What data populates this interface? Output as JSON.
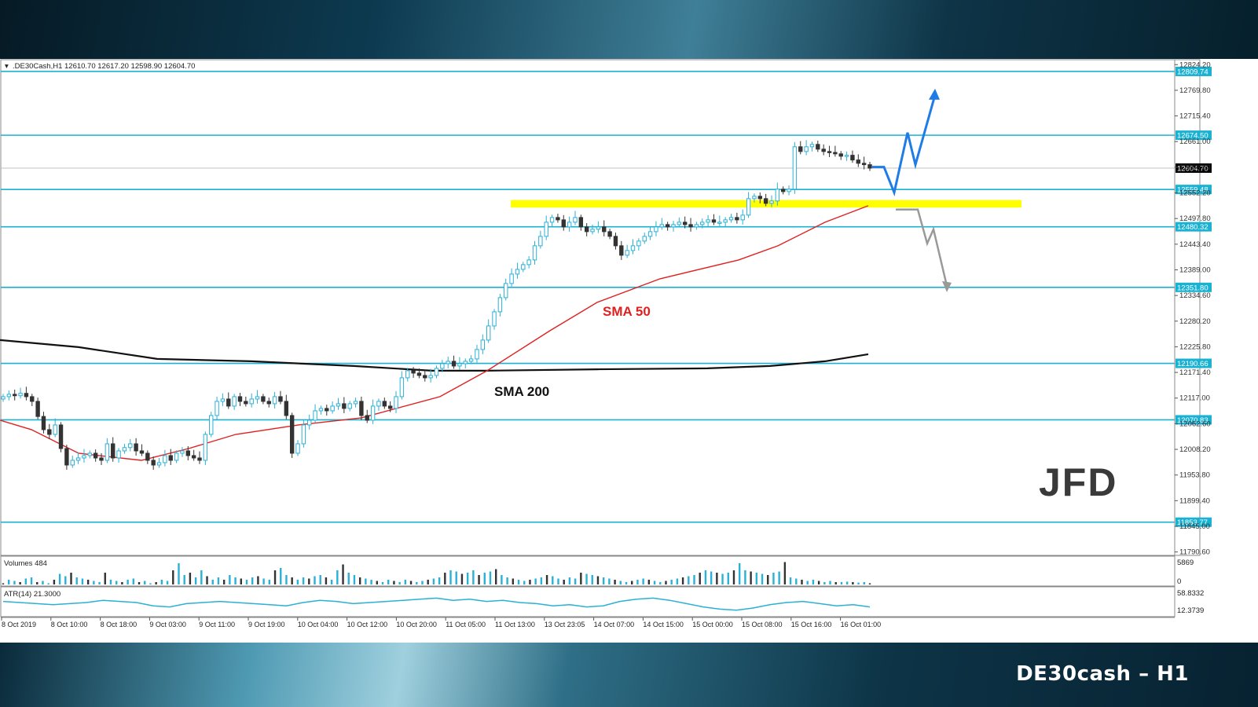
{
  "colors": {
    "level_line": "#1ab2d3",
    "sma50": "#e02020",
    "sma200": "#111111",
    "zone": "#ffff00",
    "bull_candle": "#2bb0d6",
    "bear_candle": "#333333",
    "bull_arrow": "#1f7be6",
    "bear_arrow": "#999999"
  },
  "header": {
    "symbol_text": ".DE30Cash,H1  12610.70 12617.20 12598.90 12604.70"
  },
  "footer": {
    "title": "DE30cash – H1"
  },
  "logo": {
    "text": "JFD"
  },
  "annotations": {
    "sma50_label": "SMA 50",
    "sma200_label": "SMA 200"
  },
  "volume_panel": {
    "label": "Volumes 484",
    "top_tick": "5869",
    "bottom_tick": "0"
  },
  "atr_panel": {
    "label": "ATR(14) 21.3000",
    "top_tick": "58.8332",
    "bottom_tick": "12.3739"
  },
  "chart_data": {
    "type": "candlestick",
    "ylim": [
      11790,
      12828
    ],
    "y_ticks": [
      "12824.20",
      "12769.80",
      "12715.40",
      "12661.00",
      "12606.60",
      "12552.20",
      "12497.80",
      "12443.40",
      "12389.00",
      "12334.60",
      "12280.20",
      "12225.80",
      "12171.40",
      "12117.00",
      "12062.60",
      "12008.20",
      "11953.80",
      "11899.40",
      "11845.00",
      "11790.60"
    ],
    "x_ticks": [
      "8 Oct 2019",
      "8 Oct 10:00",
      "8 Oct 18:00",
      "9 Oct 03:00",
      "9 Oct 11:00",
      "9 Oct 19:00",
      "10 Oct 04:00",
      "10 Oct 12:00",
      "10 Oct 20:00",
      "11 Oct 05:00",
      "11 Oct 13:00",
      "13 Oct 23:05",
      "14 Oct 07:00",
      "14 Oct 15:00",
      "15 Oct 00:00",
      "15 Oct 08:00",
      "15 Oct 16:00",
      "16 Oct 01:00"
    ],
    "levels": [
      {
        "value": 12809.74,
        "label": "12809.74"
      },
      {
        "value": 12674.5,
        "label": "12674.50"
      },
      {
        "value": 12559.48,
        "label": "12559.48"
      },
      {
        "value": 12480.32,
        "label": "12480.32"
      },
      {
        "value": 12351.8,
        "label": "12351.80"
      },
      {
        "value": 12190.66,
        "label": "12190.66"
      },
      {
        "value": 12070.83,
        "label": "12070.83"
      },
      {
        "value": 11853.77,
        "label": "11853.77"
      }
    ],
    "current_price": {
      "value": 12604.7,
      "label": "12604.70"
    },
    "zone": {
      "low": 12521,
      "high": 12537
    },
    "closes": [
      12120,
      12125,
      12122,
      12127,
      12120,
      12110,
      12078,
      12050,
      12040,
      12060,
      12010,
      11975,
      11985,
      11990,
      11995,
      12000,
      11990,
      11985,
      12020,
      11990,
      12005,
      12012,
      12020,
      12005,
      12000,
      11985,
      11975,
      11980,
      11995,
      11985,
      12000,
      12005,
      11995,
      11990,
      11985,
      12040,
      12080,
      12110,
      12115,
      12100,
      12120,
      12110,
      12105,
      12115,
      12120,
      12110,
      12105,
      12120,
      12110,
      12080,
      12000,
      12020,
      12060,
      12070,
      12090,
      12095,
      12090,
      12100,
      12105,
      12095,
      12105,
      12110,
      12080,
      12070,
      12100,
      12110,
      12100,
      12095,
      12120,
      12160,
      12175,
      12170,
      12165,
      12160,
      12165,
      12180,
      12190,
      12195,
      12185,
      12190,
      12195,
      12200,
      12220,
      12240,
      12270,
      12300,
      12330,
      12360,
      12380,
      12390,
      12400,
      12410,
      12440,
      12460,
      12490,
      12500,
      12495,
      12480,
      12490,
      12500,
      12480,
      12470,
      12475,
      12480,
      12470,
      12460,
      12440,
      12420,
      12430,
      12440,
      12450,
      12460,
      12470,
      12480,
      12485,
      12480,
      12485,
      12490,
      12485,
      12480,
      12485,
      12490,
      12495,
      12490,
      12490,
      12495,
      12500,
      12495,
      12505,
      12540,
      12545,
      12540,
      12530,
      12535,
      12560,
      12555,
      12560,
      12650,
      12640,
      12650,
      12655,
      12645,
      12640,
      12638,
      12635,
      12630,
      12632,
      12622,
      12615,
      12612,
      12604.7
    ],
    "sma50": [
      [
        0,
        12070
      ],
      [
        40,
        12050
      ],
      [
        100,
        12000
      ],
      [
        180,
        11985
      ],
      [
        240,
        12010
      ],
      [
        300,
        12040
      ],
      [
        380,
        12060
      ],
      [
        460,
        12075
      ],
      [
        560,
        12120
      ],
      [
        620,
        12175
      ],
      [
        700,
        12260
      ],
      [
        760,
        12320
      ],
      [
        840,
        12370
      ],
      [
        940,
        12410
      ],
      [
        990,
        12440
      ],
      [
        1050,
        12490
      ],
      [
        1105,
        12525
      ]
    ],
    "sma200": [
      [
        0,
        12240
      ],
      [
        100,
        12225
      ],
      [
        200,
        12200
      ],
      [
        320,
        12195
      ],
      [
        450,
        12185
      ],
      [
        550,
        12175
      ],
      [
        620,
        12175
      ],
      [
        760,
        12178
      ],
      [
        900,
        12180
      ],
      [
        980,
        12185
      ],
      [
        1050,
        12195
      ],
      [
        1105,
        12210
      ]
    ],
    "bull_path": [
      [
        1110,
        12607
      ],
      [
        1125,
        12607
      ],
      [
        1138,
        12553
      ],
      [
        1155,
        12680
      ],
      [
        1165,
        12612
      ],
      [
        1190,
        12760
      ]
    ],
    "bear_path": [
      [
        1140,
        12517
      ],
      [
        1168,
        12517
      ],
      [
        1180,
        12445
      ],
      [
        1188,
        12475
      ],
      [
        1205,
        12355
      ]
    ],
    "volumes": [
      0.05,
      0.2,
      0.15,
      0.1,
      0.25,
      0.3,
      0.1,
      0.15,
      0.05,
      0.2,
      0.45,
      0.35,
      0.5,
      0.3,
      0.25,
      0.2,
      0.15,
      0.1,
      0.5,
      0.2,
      0.15,
      0.1,
      0.2,
      0.25,
      0.1,
      0.15,
      0.05,
      0.1,
      0.2,
      0.15,
      0.6,
      0.9,
      0.4,
      0.5,
      0.3,
      0.6,
      0.35,
      0.2,
      0.3,
      0.2,
      0.4,
      0.3,
      0.25,
      0.2,
      0.3,
      0.35,
      0.25,
      0.2,
      0.6,
      0.7,
      0.4,
      0.3,
      0.2,
      0.3,
      0.25,
      0.35,
      0.4,
      0.3,
      0.2,
      0.6,
      0.85,
      0.5,
      0.4,
      0.3,
      0.25,
      0.2,
      0.15,
      0.1,
      0.2,
      0.15,
      0.1,
      0.2,
      0.15,
      0.1,
      0.15,
      0.2,
      0.25,
      0.3,
      0.5,
      0.6,
      0.55,
      0.45,
      0.5,
      0.6,
      0.4,
      0.5,
      0.55,
      0.65,
      0.4,
      0.3,
      0.25,
      0.2,
      0.15,
      0.2,
      0.25,
      0.3,
      0.4,
      0.35,
      0.25,
      0.2,
      0.3,
      0.25,
      0.5,
      0.45,
      0.4,
      0.35,
      0.3,
      0.25,
      0.2,
      0.15,
      0.1,
      0.15,
      0.2,
      0.25,
      0.2,
      0.15,
      0.1,
      0.15,
      0.2,
      0.25,
      0.3,
      0.35,
      0.4,
      0.5,
      0.6,
      0.55,
      0.5,
      0.45,
      0.5,
      0.6,
      0.9,
      0.6,
      0.55,
      0.5,
      0.45,
      0.4,
      0.5,
      0.55,
      0.95,
      0.3,
      0.25,
      0.2,
      0.15,
      0.2,
      0.15,
      0.1,
      0.15,
      0.1,
      0.1,
      0.12,
      0.1,
      0.08,
      0.1,
      0.05
    ],
    "atr": [
      0.55,
      0.5,
      0.45,
      0.4,
      0.45,
      0.5,
      0.6,
      0.55,
      0.5,
      0.35,
      0.3,
      0.45,
      0.5,
      0.55,
      0.5,
      0.45,
      0.4,
      0.35,
      0.5,
      0.6,
      0.55,
      0.45,
      0.5,
      0.55,
      0.6,
      0.65,
      0.7,
      0.6,
      0.65,
      0.55,
      0.6,
      0.5,
      0.45,
      0.35,
      0.4,
      0.3,
      0.35,
      0.55,
      0.65,
      0.7,
      0.6,
      0.45,
      0.3,
      0.2,
      0.15,
      0.25,
      0.4,
      0.5,
      0.55,
      0.45,
      0.35,
      0.4,
      0.3
    ],
    "title": ""
  }
}
